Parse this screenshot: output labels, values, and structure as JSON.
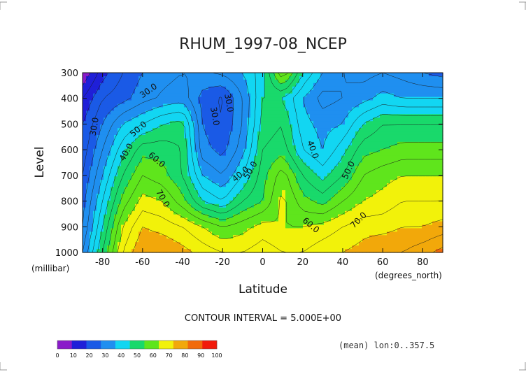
{
  "chart_data": {
    "type": "heatmap",
    "title": "RHUM_1997-08_NCEP",
    "xlabel": "Latitude",
    "ylabel": "Level",
    "y_unit": "(millibar)",
    "x_unit": "(degrees_north)",
    "xlim": [
      -90,
      90
    ],
    "ylim": [
      1000,
      300
    ],
    "x_ticks": [
      "-80",
      "-60",
      "-40",
      "-20",
      "0",
      "20",
      "40",
      "60",
      "80"
    ],
    "y_ticks": [
      "300",
      "400",
      "500",
      "600",
      "700",
      "800",
      "900",
      "1000"
    ],
    "contour_interval_text": "CONTOUR INTERVAL = 5.000E+00",
    "footer_text": "(mean) lon:0..357.5",
    "contour_labels": [
      "30.0",
      "30.0",
      "30.0",
      "30.0",
      "40.0",
      "40.0",
      "40.0",
      "50.0",
      "50.0",
      "50.0",
      "60.0",
      "60.0",
      "70.0",
      "70.0"
    ],
    "colorbar": {
      "levels": [
        "0",
        "10",
        "20",
        "30",
        "40",
        "50",
        "60",
        "70",
        "80",
        "90",
        "100"
      ],
      "colors": [
        "#8a1bc9",
        "#1f1fd8",
        "#1a5ae6",
        "#1f8ff0",
        "#12d6f2",
        "#19d96b",
        "#5fe51c",
        "#f2f20a",
        "#f2a80a",
        "#f26a0a",
        "#f21a0a"
      ]
    },
    "latitudes": [
      -90,
      -80,
      -70,
      -60,
      -50,
      -40,
      -30,
      -20,
      -10,
      0,
      10,
      20,
      30,
      40,
      50,
      60,
      70,
      80,
      90
    ],
    "levels": [
      300,
      400,
      500,
      600,
      700,
      800,
      900,
      1000
    ],
    "values": [
      [
        5,
        18,
        25,
        30,
        33,
        35,
        34,
        36,
        40,
        48,
        70,
        50,
        40,
        35,
        33,
        35,
        33,
        30,
        28
      ],
      [
        15,
        25,
        28,
        33,
        36,
        38,
        28,
        24,
        35,
        50,
        50,
        40,
        33,
        35,
        38,
        42,
        40,
        40,
        40
      ],
      [
        20,
        30,
        40,
        45,
        50,
        52,
        30,
        25,
        35,
        52,
        55,
        42,
        38,
        40,
        50,
        55,
        55,
        55,
        55
      ],
      [
        22,
        35,
        48,
        58,
        58,
        55,
        32,
        28,
        38,
        55,
        58,
        45,
        40,
        48,
        58,
        60,
        62,
        62,
        62
      ],
      [
        25,
        40,
        55,
        65,
        62,
        55,
        40,
        35,
        45,
        58,
        68,
        55,
        48,
        55,
        65,
        68,
        70,
        70,
        70
      ],
      [
        28,
        45,
        62,
        72,
        70,
        62,
        50,
        45,
        55,
        60,
        72,
        62,
        58,
        65,
        70,
        72,
        75,
        75,
        75
      ],
      [
        30,
        50,
        70,
        80,
        78,
        75,
        70,
        65,
        68,
        72,
        70,
        70,
        72,
        75,
        78,
        78,
        80,
        80,
        82
      ],
      [
        35,
        55,
        75,
        85,
        85,
        82,
        78,
        75,
        75,
        78,
        75,
        75,
        78,
        80,
        82,
        85,
        85,
        88,
        92
      ]
    ]
  }
}
